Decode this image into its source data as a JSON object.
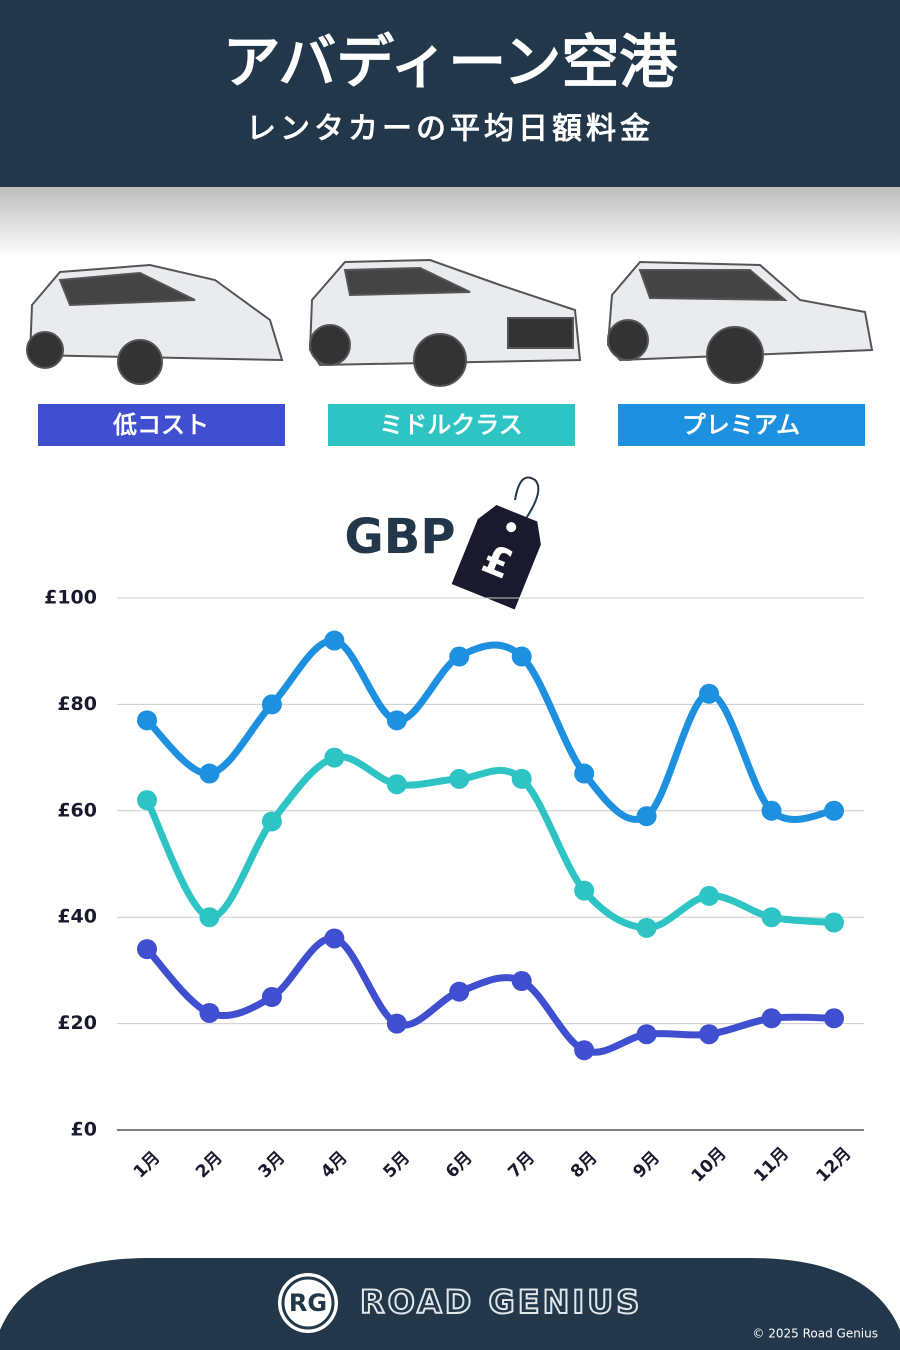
{
  "chart_data": {
    "type": "line",
    "title": "アバディーン空港",
    "subtitle": "レンタカーの平均日額料金",
    "currency": "GBP",
    "currency_symbol": "£",
    "categories": [
      "1月",
      "2月",
      "3月",
      "4月",
      "5月",
      "6月",
      "7月",
      "8月",
      "9月",
      "10月",
      "11月",
      "12月"
    ],
    "series": [
      {
        "name": "低コスト",
        "color": "#3f4fd0",
        "values": [
          34,
          22,
          25,
          36,
          20,
          26,
          28,
          15,
          18,
          18,
          21,
          21
        ]
      },
      {
        "name": "ミドルクラス",
        "color": "#2ec4c4",
        "values": [
          62,
          40,
          58,
          70,
          65,
          66,
          66,
          45,
          38,
          44,
          40,
          39
        ]
      },
      {
        "name": "プレミアム",
        "color": "#1e90e0",
        "values": [
          77,
          67,
          80,
          92,
          77,
          89,
          89,
          67,
          59,
          82,
          60,
          60
        ]
      }
    ],
    "ylim": [
      0,
      100
    ],
    "yticks": [
      {
        "value": 0,
        "label": "£0"
      },
      {
        "value": 20,
        "label": "£20"
      },
      {
        "value": 40,
        "label": "£40"
      },
      {
        "value": 60,
        "label": "£60"
      },
      {
        "value": 80,
        "label": "£80"
      },
      {
        "value": 100,
        "label": "£100"
      }
    ],
    "grid": true
  },
  "footer": {
    "logo": "RG",
    "brand": "ROAD GENIUS",
    "copyright": "© 2025 Road Genius"
  }
}
